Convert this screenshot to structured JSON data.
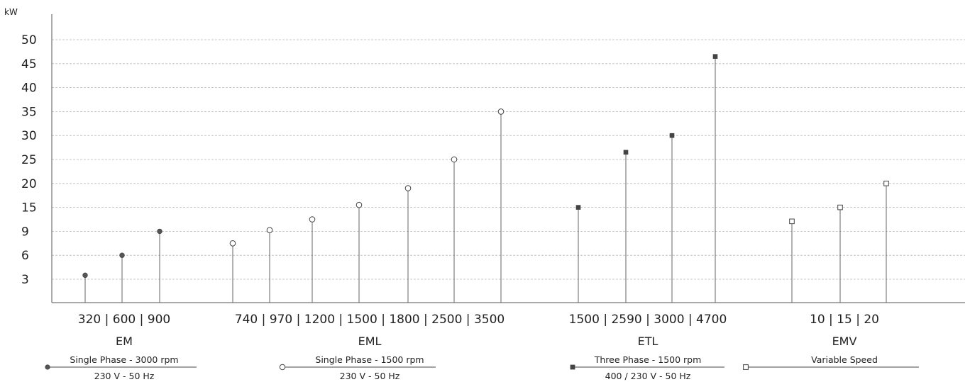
{
  "chart_data": {
    "type": "scatter",
    "yunit": "kW",
    "yticks": [
      "3",
      "6",
      "9",
      "15",
      "20",
      "25",
      "30",
      "35",
      "40",
      "45",
      "50"
    ],
    "groups": [
      {
        "name": "EM",
        "xlabel": "320 | 600 | 900",
        "desc_top": "Single Phase - 3000 rpm",
        "desc_bottom": "230 V - 50 Hz",
        "marker": "filled-circle",
        "points": [
          {
            "x": "320",
            "y": 3.5
          },
          {
            "x": "600",
            "y": 6.0
          },
          {
            "x": "900",
            "y": 9.0
          }
        ]
      },
      {
        "name": "EML",
        "xlabel": "740 | 970 | 1200 | 1500 | 1800 | 2500 | 3500",
        "desc_top": "Single Phase - 1500 rpm",
        "desc_bottom": "230 V - 50 Hz",
        "marker": "hollow-circle",
        "points": [
          {
            "x": "740",
            "y": 7.5
          },
          {
            "x": "970",
            "y": 9.3
          },
          {
            "x": "1200",
            "y": 12.0
          },
          {
            "x": "1500",
            "y": 15.5
          },
          {
            "x": "1800",
            "y": 19.0
          },
          {
            "x": "2500",
            "y": 25.0
          },
          {
            "x": "3500",
            "y": 35.0
          }
        ]
      },
      {
        "name": "ETL",
        "xlabel": "1500 | 2590 | 3000 | 4700",
        "desc_top": "Three Phase - 1500 rpm",
        "desc_bottom": "400 / 230 V - 50 Hz",
        "marker": "filled-square",
        "points": [
          {
            "x": "1500",
            "y": 15.0
          },
          {
            "x": "2590",
            "y": 26.5
          },
          {
            "x": "3000",
            "y": 30.0
          },
          {
            "x": "4700",
            "y": 46.5
          }
        ]
      },
      {
        "name": "EMV",
        "xlabel": "10   |   15   |   20",
        "desc_top": "Variable Speed",
        "desc_bottom": "",
        "marker": "hollow-square",
        "points": [
          {
            "x": "10",
            "y": 11.5
          },
          {
            "x": "15",
            "y": 15.0
          },
          {
            "x": "20",
            "y": 20.0
          }
        ]
      }
    ]
  }
}
